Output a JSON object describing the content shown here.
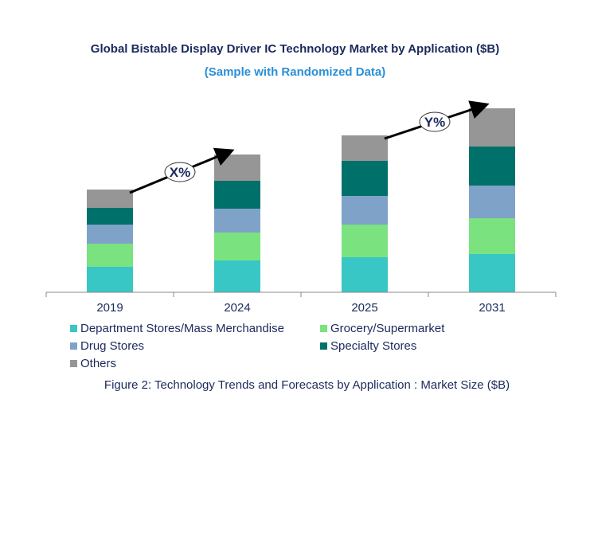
{
  "chart_data": {
    "type": "bar",
    "stacked": true,
    "title": "Global Bistable Display Driver IC Technology Market by Application ($B)",
    "subtitle": "(Sample with Randomized Data)",
    "caption": "Figure 2: Technology  Trends  and Forecasts by Application : Market Size ($B)",
    "categories": [
      "2019",
      "2024",
      "2025",
      "2031"
    ],
    "series": [
      {
        "name": "Department Stores/Mass Merchandise",
        "color": "#38c7c4",
        "values": [
          3.2,
          4.0,
          4.4,
          4.8
        ]
      },
      {
        "name": "Grocery/Supermarket",
        "color": "#7ae27f",
        "values": [
          2.9,
          3.5,
          4.1,
          4.5
        ]
      },
      {
        "name": "Drug Stores",
        "color": "#7fa3c8",
        "values": [
          2.4,
          3.0,
          3.6,
          4.1
        ]
      },
      {
        "name": "Specialty Stores",
        "color": "#00716a",
        "values": [
          2.1,
          3.5,
          4.4,
          4.9
        ]
      },
      {
        "name": "Others",
        "color": "#969696",
        "values": [
          2.3,
          3.3,
          3.2,
          4.8
        ]
      }
    ],
    "annotations": [
      {
        "label": "X%",
        "from": "2019",
        "to": "2024"
      },
      {
        "label": "Y%",
        "from": "2025",
        "to": "2031"
      }
    ],
    "xlabel": "",
    "ylabel": "",
    "grid": false,
    "legend": "bottom"
  }
}
